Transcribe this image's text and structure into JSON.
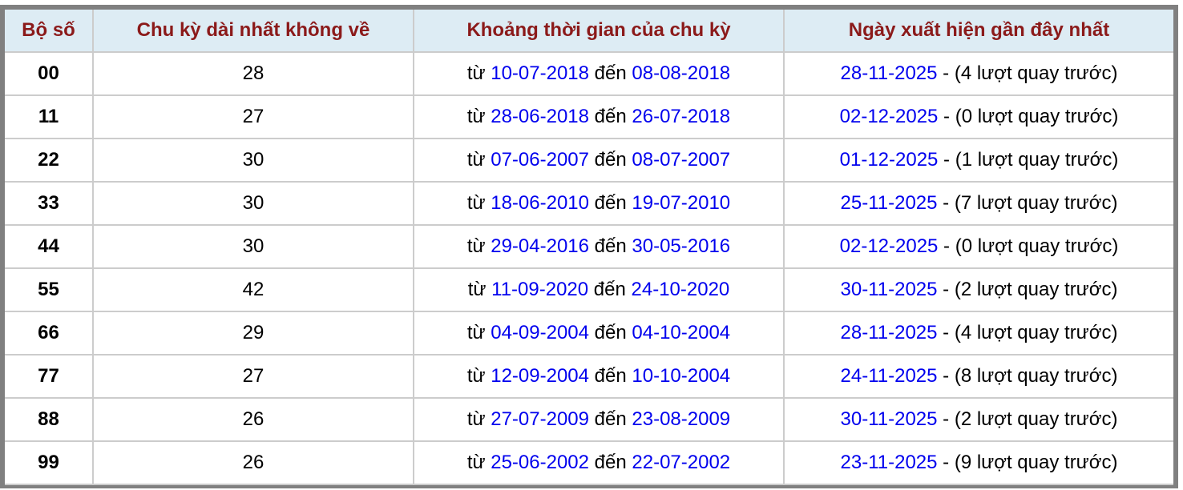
{
  "headers": [
    "Bộ số",
    "Chu kỳ dài nhất không về",
    "Khoảng thời gian của chu kỳ",
    "Ngày xuất hiện gần đây nhất"
  ],
  "labels": {
    "from": "từ",
    "to": "đến",
    "sep": " - "
  },
  "rows": [
    {
      "num": "00",
      "cycle": "28",
      "start": "10-07-2018",
      "end": "08-08-2018",
      "last": "28-11-2025",
      "ago": "(4 lượt quay trước)"
    },
    {
      "num": "11",
      "cycle": "27",
      "start": "28-06-2018",
      "end": "26-07-2018",
      "last": "02-12-2025",
      "ago": "(0 lượt quay trước)"
    },
    {
      "num": "22",
      "cycle": "30",
      "start": "07-06-2007",
      "end": "08-07-2007",
      "last": "01-12-2025",
      "ago": "(1 lượt quay trước)"
    },
    {
      "num": "33",
      "cycle": "30",
      "start": "18-06-2010",
      "end": "19-07-2010",
      "last": "25-11-2025",
      "ago": "(7 lượt quay trước)"
    },
    {
      "num": "44",
      "cycle": "30",
      "start": "29-04-2016",
      "end": "30-05-2016",
      "last": "02-12-2025",
      "ago": "(0 lượt quay trước)"
    },
    {
      "num": "55",
      "cycle": "42",
      "start": "11-09-2020",
      "end": "24-10-2020",
      "last": "30-11-2025",
      "ago": "(2 lượt quay trước)"
    },
    {
      "num": "66",
      "cycle": "29",
      "start": "04-09-2004",
      "end": "04-10-2004",
      "last": "28-11-2025",
      "ago": "(4 lượt quay trước)"
    },
    {
      "num": "77",
      "cycle": "27",
      "start": "12-09-2004",
      "end": "10-10-2004",
      "last": "24-11-2025",
      "ago": "(8 lượt quay trước)"
    },
    {
      "num": "88",
      "cycle": "26",
      "start": "27-07-2009",
      "end": "23-08-2009",
      "last": "30-11-2025",
      "ago": "(2 lượt quay trước)"
    },
    {
      "num": "99",
      "cycle": "26",
      "start": "25-06-2002",
      "end": "22-07-2002",
      "last": "23-11-2025",
      "ago": "(9 lượt quay trước)"
    }
  ]
}
